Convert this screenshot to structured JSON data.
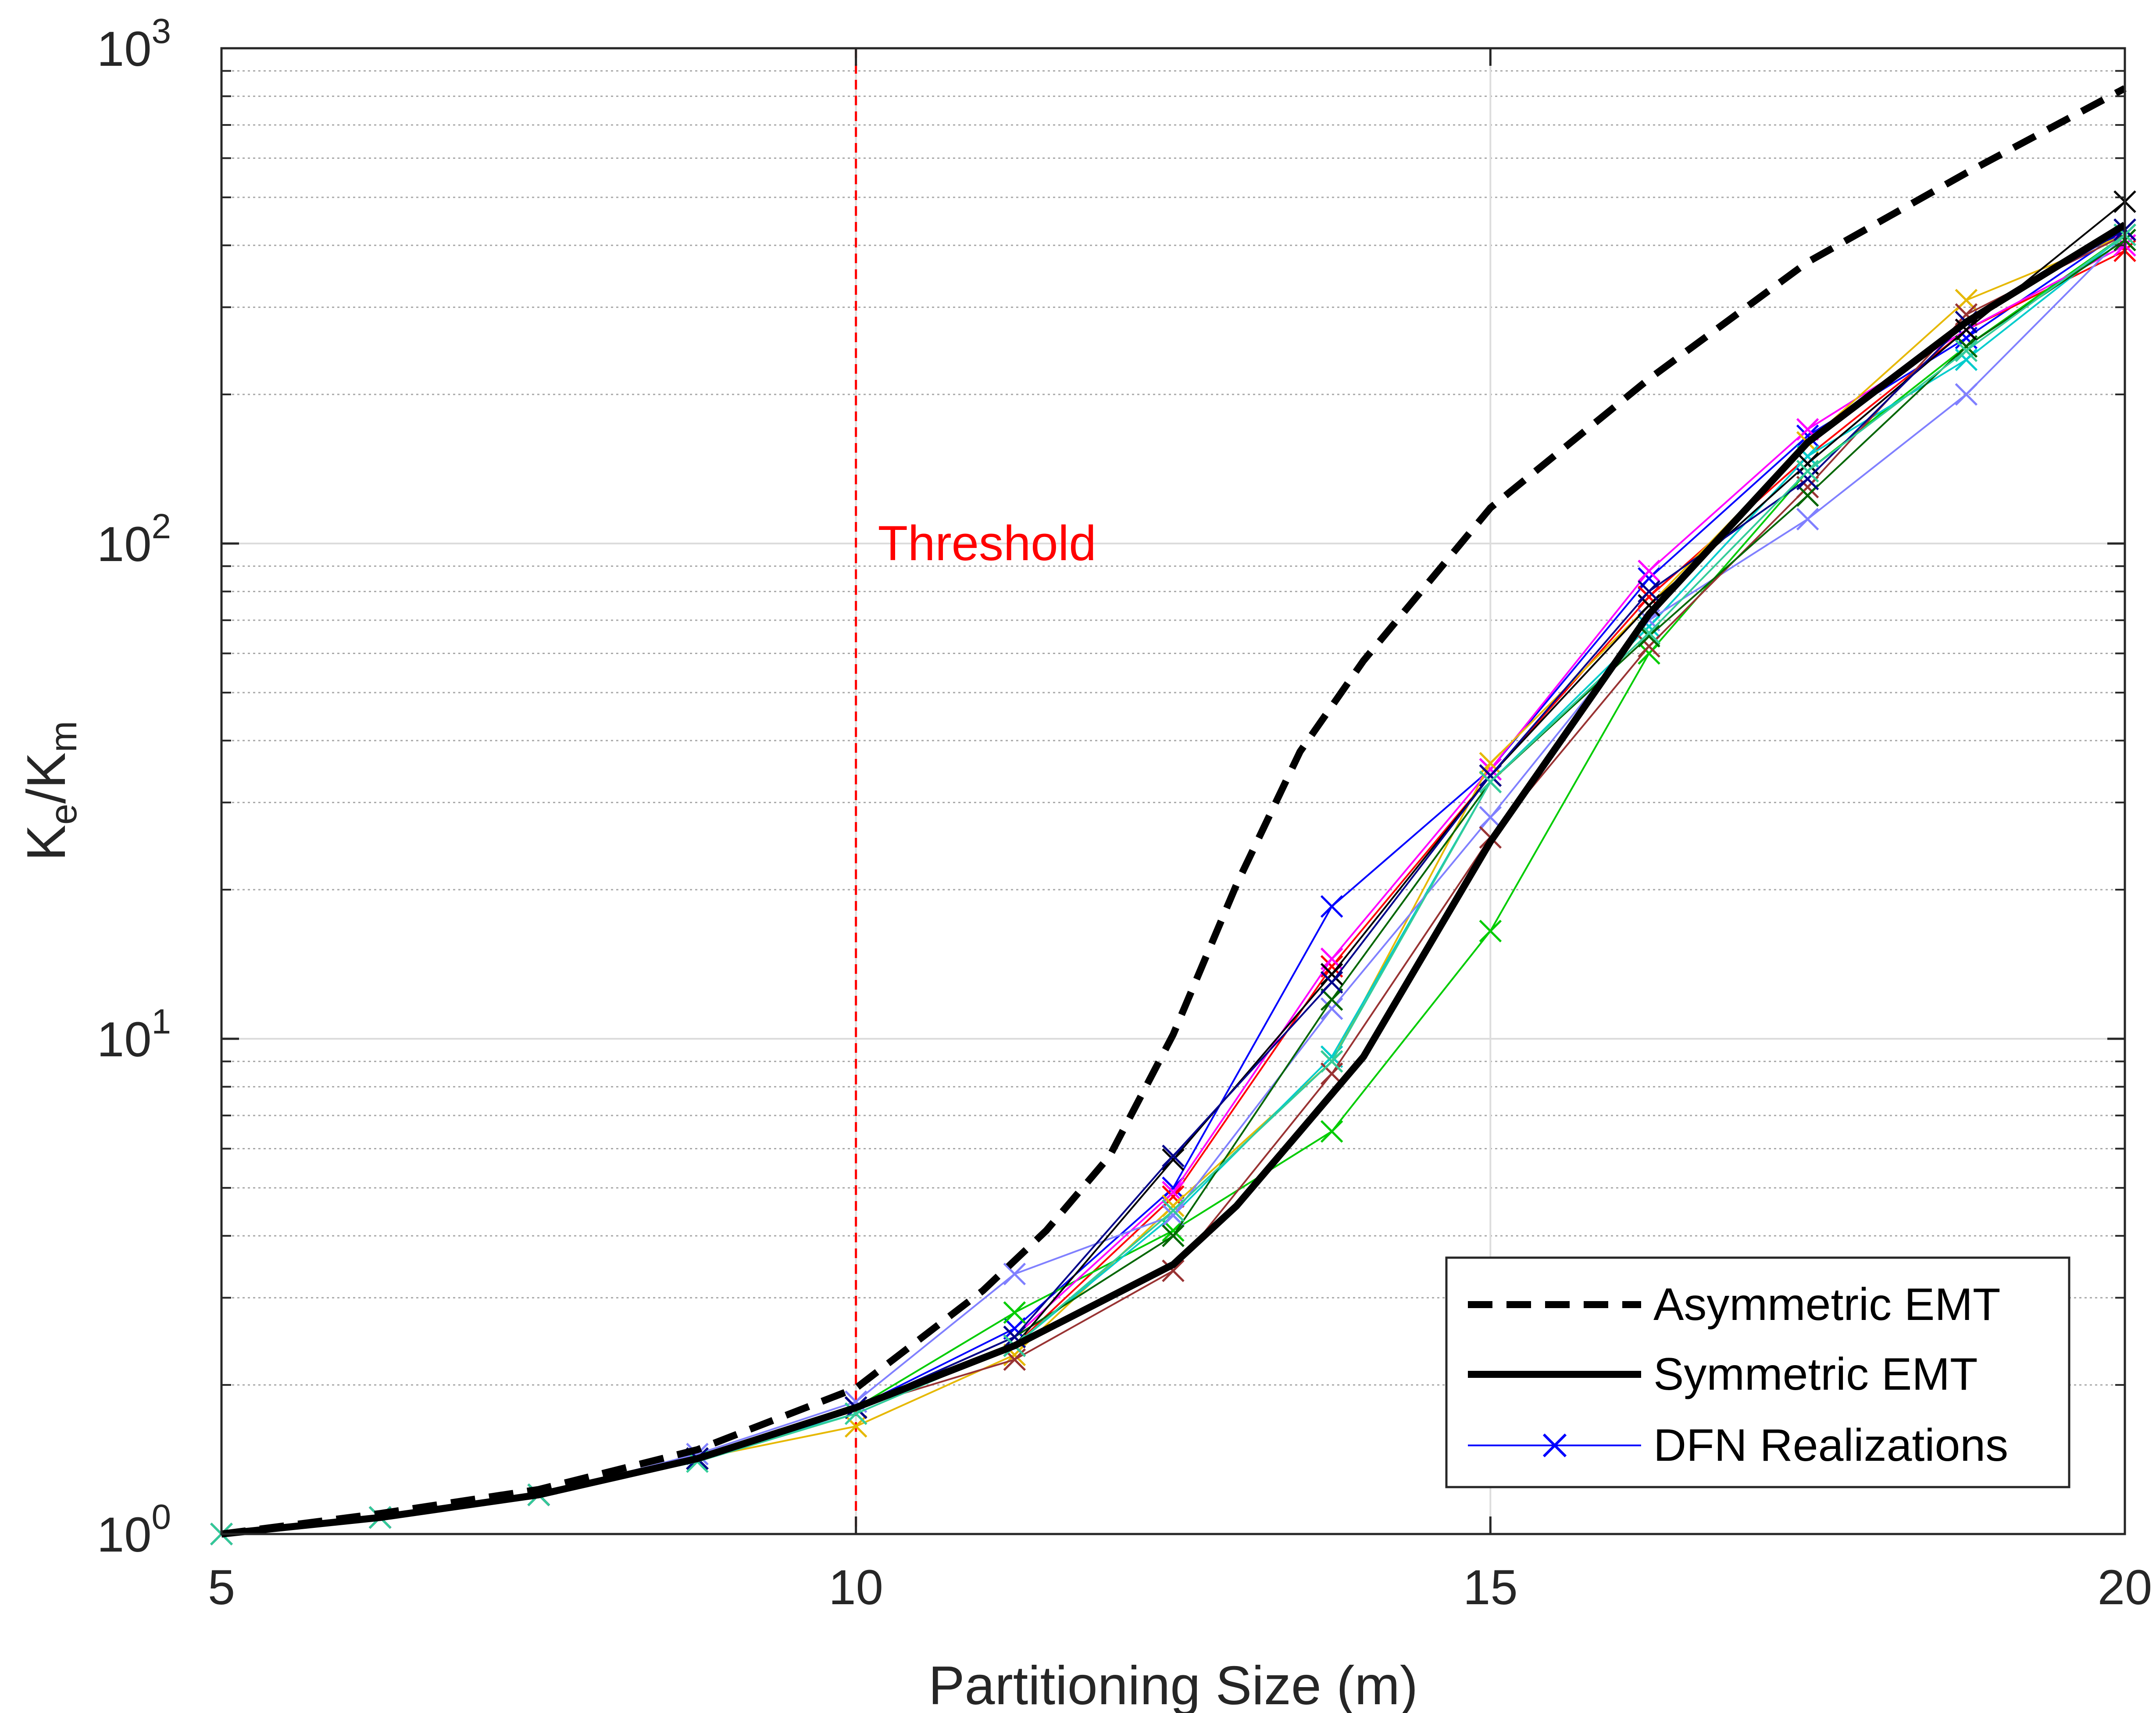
{
  "chart_data": {
    "type": "line",
    "xlabel": "Partitioning Size (m)",
    "ylabel": {
      "main": "K",
      "sub1": "e",
      "sep": "/K",
      "sub2": "m"
    },
    "xlim": [
      5,
      20
    ],
    "ylim": [
      1,
      1000
    ],
    "yscale": "log",
    "grid": true,
    "x_ticks": [
      5,
      10,
      15,
      20
    ],
    "y_ticks": [
      {
        "value": 1,
        "base": "10",
        "exp": "0"
      },
      {
        "value": 10,
        "base": "10",
        "exp": "1"
      },
      {
        "value": 100,
        "base": "10",
        "exp": "2"
      },
      {
        "value": 1000,
        "base": "10",
        "exp": "3"
      }
    ],
    "annotations": [
      {
        "text": "Threshold",
        "x": 10,
        "color": "#ff0000",
        "style": "dashed-vertical-line"
      }
    ],
    "legend": {
      "position": "bottom-right",
      "entries": [
        {
          "label": "Asymmetric EMT",
          "style": "dashed"
        },
        {
          "label": "Symmetric EMT",
          "style": "solid"
        },
        {
          "label": "DFN Realizations",
          "style": "line-x-marker",
          "color": "#0000ff"
        }
      ]
    },
    "series": [
      {
        "name": "Asymmetric EMT",
        "color": "#000000",
        "style": "dashed",
        "marker": false,
        "x": [
          5,
          6.25,
          7.5,
          8.75,
          10,
          11,
          11.5,
          12,
          12.5,
          13,
          13.5,
          14,
          15,
          16.25,
          17.5,
          18.75,
          20
        ],
        "y": [
          1,
          1.1,
          1.23,
          1.48,
          1.97,
          3.1,
          4.1,
          5.8,
          10.2,
          20.5,
          38,
          58,
          118,
          215,
          370,
          560,
          830
        ]
      },
      {
        "name": "Symmetric EMT",
        "color": "#000000",
        "style": "solid",
        "marker": false,
        "x": [
          5,
          6.25,
          7.5,
          8.75,
          10,
          11.25,
          12.5,
          13,
          13.5,
          14,
          15,
          16.25,
          17.5,
          18.75,
          20
        ],
        "y": [
          1,
          1.08,
          1.2,
          1.42,
          1.8,
          2.4,
          3.5,
          4.6,
          6.5,
          9.2,
          25,
          72,
          160,
          280,
          440
        ]
      },
      {
        "name": "",
        "color": "#0000ff",
        "marker": true,
        "x": [
          5,
          6.25,
          7.5,
          8.75,
          10,
          11.25,
          12.5,
          13.75,
          15,
          16.25,
          17.5,
          18.75,
          20
        ],
        "y": [
          1,
          1.08,
          1.2,
          1.42,
          1.8,
          2.6,
          5.0,
          18.5,
          35,
          85,
          165,
          260,
          430
        ]
      },
      {
        "name": "",
        "color": "#ff0000",
        "marker": true,
        "x": [
          5,
          6.25,
          7.5,
          8.75,
          10,
          11.25,
          12.5,
          13.75,
          15,
          16.25,
          17.5,
          18.75,
          20
        ],
        "y": [
          1,
          1.08,
          1.2,
          1.42,
          1.8,
          2.4,
          4.8,
          14.0,
          34,
          78,
          150,
          270,
          390
        ]
      },
      {
        "name": "",
        "color": "#00cc00",
        "marker": true,
        "x": [
          5,
          6.25,
          7.5,
          8.75,
          10,
          11.25,
          12.5,
          13.75,
          15,
          16.25,
          17.5,
          18.75,
          20
        ],
        "y": [
          1,
          1.08,
          1.2,
          1.42,
          1.8,
          2.8,
          4.1,
          6.5,
          16.5,
          60,
          140,
          250,
          420
        ]
      },
      {
        "name": "",
        "color": "#ff00ff",
        "marker": true,
        "x": [
          5,
          6.25,
          7.5,
          8.75,
          10,
          11.25,
          12.5,
          13.75,
          15,
          16.25,
          17.5,
          18.75,
          20
        ],
        "y": [
          1,
          1.08,
          1.2,
          1.42,
          1.8,
          2.5,
          4.9,
          14.5,
          35,
          88,
          170,
          270,
          400
        ]
      },
      {
        "name": "",
        "color": "#e6b800",
        "marker": true,
        "x": [
          5,
          6.25,
          7.5,
          8.75,
          10,
          11.25,
          12.5,
          13.75,
          15,
          16.25,
          17.5,
          18.75,
          20
        ],
        "y": [
          1,
          1.08,
          1.2,
          1.42,
          1.65,
          2.3,
          4.6,
          9.0,
          36,
          75,
          160,
          310,
          420
        ]
      },
      {
        "name": "",
        "color": "#00cccc",
        "marker": true,
        "x": [
          5,
          6.25,
          7.5,
          8.75,
          10,
          11.25,
          12.5,
          13.75,
          15,
          16.25,
          17.5,
          18.75,
          20
        ],
        "y": [
          1,
          1.08,
          1.2,
          1.42,
          1.75,
          2.4,
          4.4,
          9.2,
          33,
          68,
          150,
          235,
          420
        ]
      },
      {
        "name": "",
        "color": "#8080ff",
        "marker": true,
        "x": [
          5,
          6.25,
          7.5,
          8.75,
          10,
          11.25,
          12.5,
          13.75,
          15,
          16.25,
          17.5,
          18.75,
          20
        ],
        "y": [
          1,
          1.08,
          1.2,
          1.45,
          1.85,
          3.35,
          4.4,
          11.5,
          28,
          70,
          112,
          200,
          420
        ]
      },
      {
        "name": "",
        "color": "#993333",
        "marker": true,
        "x": [
          5,
          6.25,
          7.5,
          8.75,
          10,
          11.25,
          12.5,
          13.75,
          15,
          16.25,
          17.5,
          18.75,
          20
        ],
        "y": [
          1,
          1.08,
          1.2,
          1.42,
          1.8,
          2.25,
          3.4,
          8.5,
          25.5,
          62,
          130,
          290,
          420
        ]
      },
      {
        "name": "",
        "color": "#006600",
        "marker": true,
        "x": [
          5,
          6.25,
          7.5,
          8.75,
          10,
          11.25,
          12.5,
          13.75,
          15,
          16.25,
          17.5,
          18.75,
          20
        ],
        "y": [
          1,
          1.08,
          1.2,
          1.42,
          1.8,
          2.5,
          4.0,
          12.0,
          33,
          65,
          125,
          250,
          410
        ]
      },
      {
        "name": "",
        "color": "#000000",
        "marker": true,
        "x": [
          5,
          6.25,
          7.5,
          8.75,
          10,
          11.25,
          12.5,
          13.75,
          15,
          16.25,
          17.5,
          18.75,
          20
        ],
        "y": [
          1,
          1.08,
          1.2,
          1.42,
          1.8,
          2.4,
          5.7,
          13.5,
          34,
          75,
          145,
          270,
          490
        ]
      },
      {
        "name": "",
        "color": "#00008b",
        "marker": true,
        "x": [
          5,
          6.25,
          7.5,
          8.75,
          10,
          11.25,
          12.5,
          13.75,
          15,
          16.25,
          17.5,
          18.75,
          20
        ],
        "y": [
          1,
          1.08,
          1.2,
          1.42,
          1.8,
          2.5,
          5.8,
          13.0,
          34,
          80,
          135,
          280,
          430
        ]
      },
      {
        "name": "",
        "color": "#33cc99",
        "marker": true,
        "x": [
          5,
          6.25,
          7.5,
          8.75,
          10,
          11.25,
          12.5,
          13.75,
          15,
          16.25,
          17.5,
          18.75,
          20
        ],
        "y": [
          1,
          1.08,
          1.2,
          1.4,
          1.75,
          2.4,
          4.5,
          9.0,
          33,
          66,
          140,
          245,
          420
        ]
      }
    ]
  }
}
